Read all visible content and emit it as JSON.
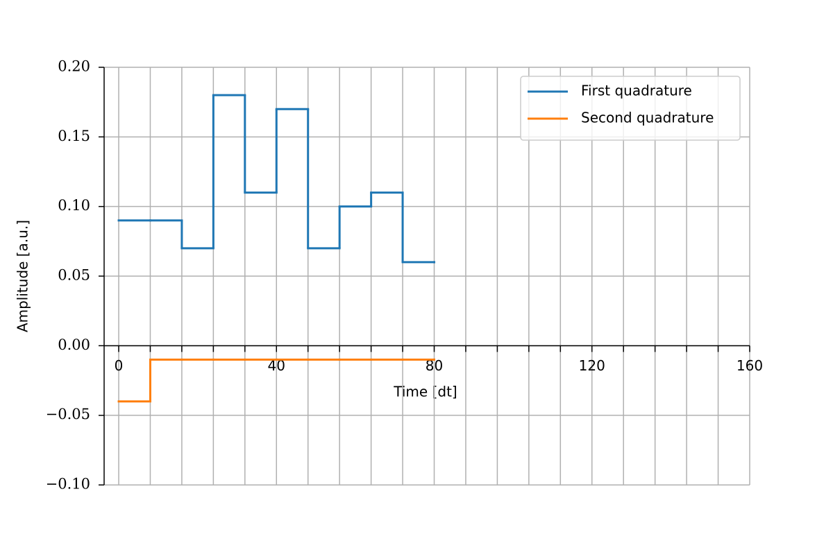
{
  "chart_data": {
    "type": "step",
    "xlabel": "Time [dt]",
    "ylabel": "Amplitude [a.u.]",
    "x": [
      0,
      8,
      16,
      24,
      32,
      40,
      48,
      56,
      64,
      72,
      80
    ],
    "series": [
      {
        "name": "First quadrature",
        "color": "#1f77b4",
        "values": [
          0.09,
          0.09,
          0.07,
          0.18,
          0.11,
          0.17,
          0.07,
          0.1,
          0.11,
          0.06,
          0.06
        ]
      },
      {
        "name": "Second quadrature",
        "color": "#ff7f0e",
        "values": [
          -0.04,
          -0.01,
          -0.01,
          -0.01,
          -0.01,
          -0.01,
          -0.01,
          -0.01,
          -0.01,
          -0.01,
          -0.01
        ]
      }
    ],
    "xlim": [
      -3.7,
      160
    ],
    "ylim": [
      -0.1,
      0.2
    ],
    "xticks": [
      0,
      40,
      80,
      120,
      160
    ],
    "xminorticks": [
      8,
      16,
      24,
      32,
      48,
      56,
      64,
      72,
      88,
      96,
      104,
      112,
      128,
      136,
      144,
      152
    ],
    "yticks": [
      {
        "value": -0.1,
        "label": "−0.10"
      },
      {
        "value": -0.05,
        "label": "−0.05"
      },
      {
        "value": 0,
        "label": "0.00"
      },
      {
        "value": 0.05,
        "label": "0.05"
      },
      {
        "value": 0.1,
        "label": "0.10"
      },
      {
        "value": 0.15,
        "label": "0.15"
      },
      {
        "value": 0.2,
        "label": "0.20"
      }
    ],
    "grid": true,
    "legend": "upper right"
  }
}
